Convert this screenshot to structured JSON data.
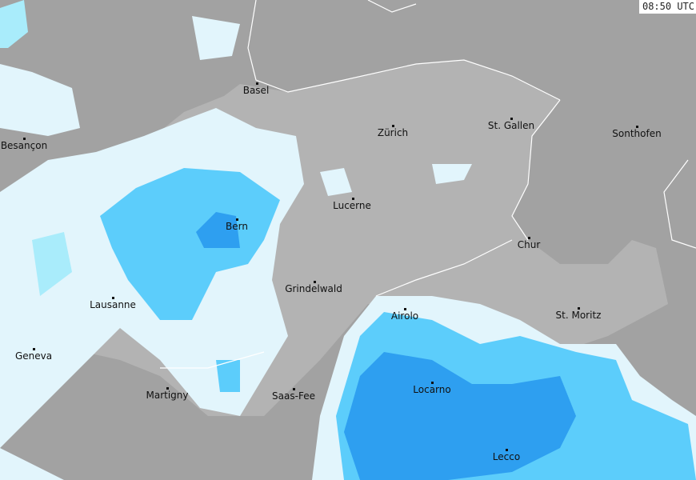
{
  "timestamp": "08:50 UTC",
  "colors": {
    "land_outside": "#a2a2a2",
    "switzerland": "#b3b3b3",
    "precip_light": "#e2f5fc",
    "precip_light2": "#a9ecfb",
    "precip_moderate": "#5ccdfb",
    "precip_heavy": "#2e9ff0",
    "borders_rivers": "#ffffff"
  },
  "cities": [
    {
      "name": "Basel"
    },
    {
      "name": "Zürich"
    },
    {
      "name": "St. Gallen"
    },
    {
      "name": "Sonthofen"
    },
    {
      "name": "Besançon"
    },
    {
      "name": "Lucerne"
    },
    {
      "name": "Bern"
    },
    {
      "name": "Chur"
    },
    {
      "name": "Grindelwald"
    },
    {
      "name": "Lausanne"
    },
    {
      "name": "Airolo"
    },
    {
      "name": "St. Moritz"
    },
    {
      "name": "Geneva"
    },
    {
      "name": "Martigny"
    },
    {
      "name": "Saas-Fee"
    },
    {
      "name": "Locarno"
    },
    {
      "name": "Lecco"
    }
  ]
}
